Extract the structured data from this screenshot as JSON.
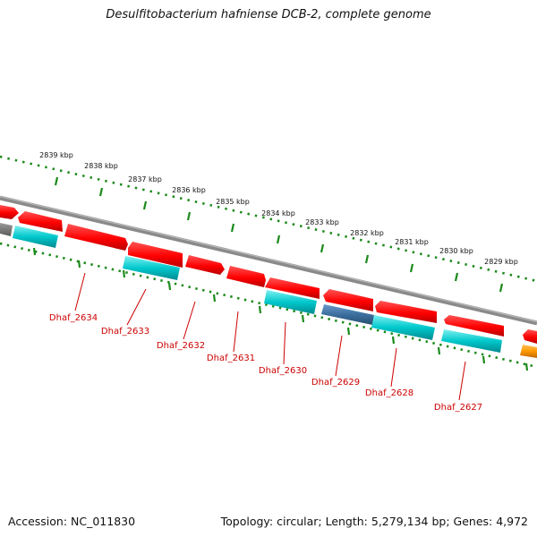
{
  "title": "Desulfitobacterium hafniense DCB-2, complete genome",
  "footer": {
    "accession": "Accession: NC_011830",
    "summary": "Topology: circular; Length: 5,279,134 bp; Genes: 4,972"
  },
  "colors": {
    "cds_forward": "#ff0000",
    "cds_reverse": "#00c8cc",
    "cds_other": "#3c6e9e",
    "backbone": "#888888",
    "ticks": "#1a8a1a",
    "labels": "#cc0000",
    "unknown": "#ff9900"
  },
  "outer_scale": {
    "unit": "kbp",
    "ticks": [
      {
        "label": "2839 kbp"
      },
      {
        "label": "2838 kbp"
      },
      {
        "label": "2837 kbp"
      },
      {
        "label": "2836 kbp"
      },
      {
        "label": "2835 kbp"
      },
      {
        "label": "2834 kbp"
      },
      {
        "label": "2833 kbp"
      },
      {
        "label": "2832 kbp"
      },
      {
        "label": "2831 kbp"
      },
      {
        "label": "2830 kbp"
      },
      {
        "label": "2829 kbp"
      }
    ]
  },
  "gene_labels": [
    {
      "label": "Dhaf_2634"
    },
    {
      "label": "Dhaf_2633"
    },
    {
      "label": "Dhaf_2632"
    },
    {
      "label": "Dhaf_2631"
    },
    {
      "label": "Dhaf_2630"
    },
    {
      "label": "Dhaf_2629"
    },
    {
      "label": "Dhaf_2628"
    },
    {
      "label": "Dhaf_2627"
    }
  ]
}
